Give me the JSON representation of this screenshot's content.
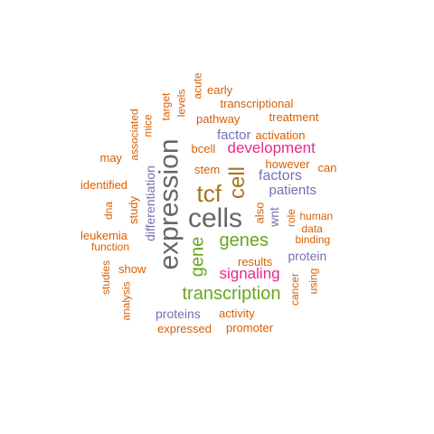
{
  "palette": {
    "gray": "#666666",
    "orange": "#d95f02",
    "purple": "#7570b3",
    "magenta": "#e7298a",
    "green": "#66a61e",
    "gold": "#a6761d"
  },
  "words": [
    {
      "text": "cells",
      "color": "#666666",
      "vertical": false
    },
    {
      "text": "expression",
      "color": "#666666",
      "vertical": true
    },
    {
      "text": "tcf",
      "color": "#a6761d",
      "vertical": false
    },
    {
      "text": "cell",
      "color": "#a6761d",
      "vertical": true
    },
    {
      "text": "genes",
      "color": "#66a61e",
      "vertical": false
    },
    {
      "text": "gene",
      "color": "#66a61e",
      "vertical": true
    },
    {
      "text": "transcription",
      "color": "#66a61e",
      "vertical": false
    },
    {
      "text": "signaling",
      "color": "#e7298a",
      "vertical": false
    },
    {
      "text": "development",
      "color": "#e7298a",
      "vertical": false
    },
    {
      "text": "factors",
      "color": "#7570b3",
      "vertical": false
    },
    {
      "text": "patients",
      "color": "#7570b3",
      "vertical": false
    },
    {
      "text": "factor",
      "color": "#7570b3",
      "vertical": false
    },
    {
      "text": "wnt",
      "color": "#7570b3",
      "vertical": true
    },
    {
      "text": "differentiation",
      "color": "#7570b3",
      "vertical": true
    },
    {
      "text": "protein",
      "color": "#7570b3",
      "vertical": false
    },
    {
      "text": "proteins",
      "color": "#7570b3",
      "vertical": false
    },
    {
      "text": "activation",
      "color": "#d95f02",
      "vertical": false
    },
    {
      "text": "pathway",
      "color": "#d95f02",
      "vertical": false
    },
    {
      "text": "transcriptional",
      "color": "#d95f02",
      "vertical": false
    },
    {
      "text": "treatment",
      "color": "#d95f02",
      "vertical": false
    },
    {
      "text": "early",
      "color": "#d95f02",
      "vertical": false
    },
    {
      "text": "acute",
      "color": "#d95f02",
      "vertical": true
    },
    {
      "text": "levels",
      "color": "#d95f02",
      "vertical": true
    },
    {
      "text": "target",
      "color": "#d95f02",
      "vertical": true
    },
    {
      "text": "mice",
      "color": "#d95f02",
      "vertical": true
    },
    {
      "text": "associated",
      "color": "#d95f02",
      "vertical": true
    },
    {
      "text": "may",
      "color": "#d95f02",
      "vertical": false
    },
    {
      "text": "bcell",
      "color": "#d95f02",
      "vertical": false
    },
    {
      "text": "however",
      "color": "#d95f02",
      "vertical": false
    },
    {
      "text": "can",
      "color": "#d95f02",
      "vertical": false
    },
    {
      "text": "stem",
      "color": "#d95f02",
      "vertical": false
    },
    {
      "text": "identified",
      "color": "#d95f02",
      "vertical": false
    },
    {
      "text": "dna",
      "color": "#d95f02",
      "vertical": true
    },
    {
      "text": "study",
      "color": "#d95f02",
      "vertical": true
    },
    {
      "text": "also",
      "color": "#d95f02",
      "vertical": true
    },
    {
      "text": "role",
      "color": "#d95f02",
      "vertical": true
    },
    {
      "text": "human",
      "color": "#d95f02",
      "vertical": false
    },
    {
      "text": "data",
      "color": "#d95f02",
      "vertical": false
    },
    {
      "text": "binding",
      "color": "#d95f02",
      "vertical": false
    },
    {
      "text": "leukemia",
      "color": "#d95f02",
      "vertical": false
    },
    {
      "text": "function",
      "color": "#d95f02",
      "vertical": false
    },
    {
      "text": "results",
      "color": "#d95f02",
      "vertical": false
    },
    {
      "text": "show",
      "color": "#d95f02",
      "vertical": false
    },
    {
      "text": "studies",
      "color": "#d95f02",
      "vertical": true
    },
    {
      "text": "analysis",
      "color": "#d95f02",
      "vertical": true
    },
    {
      "text": "cancer",
      "color": "#d95f02",
      "vertical": true
    },
    {
      "text": "using",
      "color": "#d95f02",
      "vertical": true
    },
    {
      "text": "activity",
      "color": "#d95f02",
      "vertical": false
    },
    {
      "text": "expressed",
      "color": "#d95f02",
      "vertical": false
    },
    {
      "text": "promoter",
      "color": "#d95f02",
      "vertical": false
    }
  ]
}
